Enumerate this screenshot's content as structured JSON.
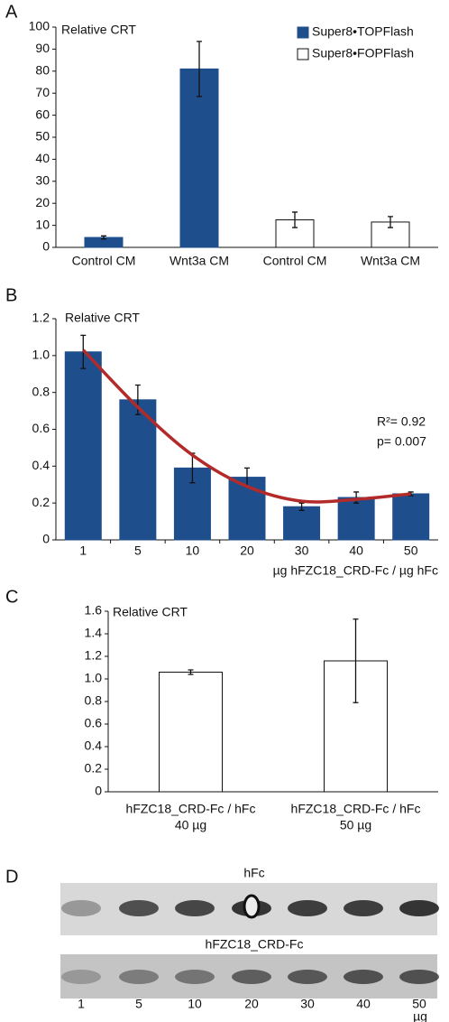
{
  "chart_data": [
    {
      "type": "bar",
      "panel_label": "A",
      "title": "Relative CRT",
      "categories": [
        "Control CM",
        "Wnt3a CM",
        "Control CM",
        "Wnt3a CM"
      ],
      "series": [
        {
          "name": "Super8•TOPFlash",
          "color": "#1f4e8c",
          "values": [
            4.5,
            81,
            null,
            null
          ],
          "errors": [
            0.7,
            12.5,
            null,
            null
          ]
        },
        {
          "name": "Super8•FOPFlash",
          "color": "#ffffff",
          "values": [
            null,
            null,
            12.5,
            11.5
          ],
          "errors": [
            null,
            null,
            3.5,
            2.5
          ]
        }
      ],
      "ylim": [
        0,
        100
      ],
      "yticks": [
        0,
        10,
        20,
        30,
        40,
        50,
        60,
        70,
        80,
        90,
        100
      ],
      "legend": "upper right"
    },
    {
      "type": "bar",
      "panel_label": "B",
      "title": "Relative CRT",
      "categories": [
        "1",
        "5",
        "10",
        "20",
        "30",
        "40",
        "50"
      ],
      "series": [
        {
          "color": "#1f4e8c",
          "values": [
            1.02,
            0.76,
            0.39,
            0.34,
            0.18,
            0.23,
            0.25
          ],
          "errors": [
            0.09,
            0.08,
            0.08,
            0.05,
            0.02,
            0.03,
            0.01
          ]
        }
      ],
      "fit": {
        "color": "#b22a2a",
        "values": [
          1.03,
          0.72,
          0.46,
          0.29,
          0.21,
          0.22,
          0.25
        ]
      },
      "annotations": [
        "R²= 0.92",
        "p= 0.007"
      ],
      "x_label": "µg hFZC18_CRD-Fc / µg hFc",
      "ylim": [
        0,
        1.2
      ],
      "yticks": [
        0,
        0.2,
        0.4,
        0.6,
        0.8,
        {
          "value": 1,
          "label": "1.0"
        },
        1.2
      ]
    },
    {
      "type": "bar",
      "panel_label": "C",
      "title": "Relative CRT",
      "categories": [
        [
          "hFZC18_CRD-Fc / hFc",
          "40 µg"
        ],
        [
          "hFZC18_CRD-Fc / hFc",
          "50 µg"
        ]
      ],
      "series": [
        {
          "color": "#ffffff",
          "values": [
            1.06,
            1.16
          ],
          "errors": [
            0.02,
            0.37
          ]
        }
      ],
      "ylim": [
        0,
        1.6
      ],
      "yticks": [
        0,
        0.2,
        0.4,
        0.6,
        0.8,
        {
          "value": 1,
          "label": "1.0"
        },
        1.2,
        1.4,
        1.6
      ]
    }
  ],
  "blot": {
    "panel_label": "D",
    "top_label": "hFc",
    "bottom_label": "hFZC18_CRD-Fc",
    "lanes": [
      "1",
      "5",
      "10",
      "20",
      "30",
      "40",
      "50"
    ],
    "unit": "µg"
  }
}
